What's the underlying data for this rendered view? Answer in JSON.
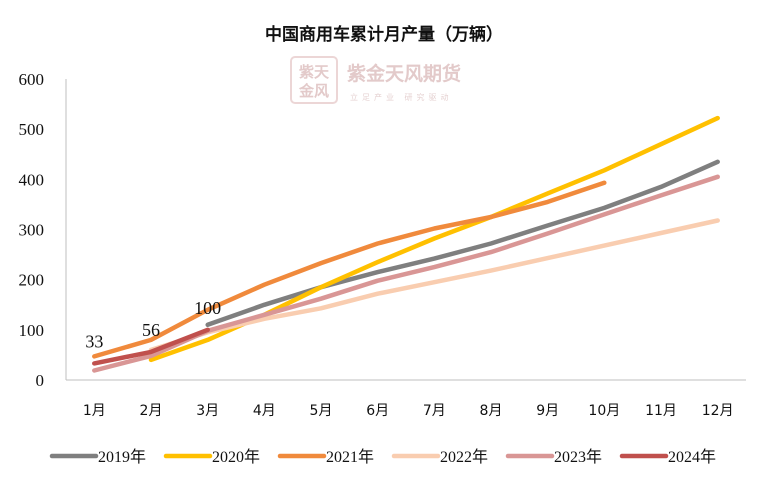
{
  "watermark": {
    "brand": "紫金天风期货",
    "slogan": "立足产业 研究驱动",
    "seal": [
      "紫天",
      "金风"
    ]
  },
  "chart_data": {
    "type": "line",
    "title": "中国商用车累计月产量（万辆）",
    "xlabel": "",
    "ylabel": "",
    "categories": [
      "1月",
      "2月",
      "3月",
      "4月",
      "5月",
      "6月",
      "7月",
      "8月",
      "9月",
      "10月",
      "11月",
      "12月"
    ],
    "ylim": [
      0,
      600
    ],
    "yticks": [
      0,
      100,
      200,
      300,
      400,
      500,
      600
    ],
    "grid": false,
    "legend_position": "bottom",
    "series": [
      {
        "name": "2019年",
        "color": "#7f7f7f",
        "values": [
          null,
          null,
          110,
          150,
          185,
          215,
          242,
          272,
          308,
          343,
          385,
          435
        ]
      },
      {
        "name": "2020年",
        "color": "#ffc000",
        "values": [
          null,
          40,
          80,
          130,
          185,
          235,
          282,
          325,
          372,
          418,
          470,
          522
        ]
      },
      {
        "name": "2021年",
        "color": "#f08a3c",
        "values": [
          47,
          80,
          140,
          190,
          233,
          272,
          302,
          325,
          355,
          393,
          null,
          null
        ]
      },
      {
        "name": "2022年",
        "color": "#f9cdb0",
        "values": [
          null,
          60,
          95,
          122,
          143,
          172,
          195,
          218,
          243,
          268,
          293,
          318
        ]
      },
      {
        "name": "2023年",
        "color": "#d99695",
        "values": [
          19,
          48,
          98,
          130,
          162,
          198,
          225,
          255,
          292,
          330,
          368,
          405
        ]
      },
      {
        "name": "2024年",
        "color": "#c0504d",
        "values": [
          33,
          56,
          100,
          null,
          null,
          null,
          null,
          null,
          null,
          null,
          null,
          null
        ]
      }
    ],
    "data_labels": [
      {
        "series": "2024年",
        "index": 0,
        "text": "33"
      },
      {
        "series": "2024年",
        "index": 1,
        "text": "56"
      },
      {
        "series": "2024年",
        "index": 2,
        "text": "100"
      }
    ]
  }
}
